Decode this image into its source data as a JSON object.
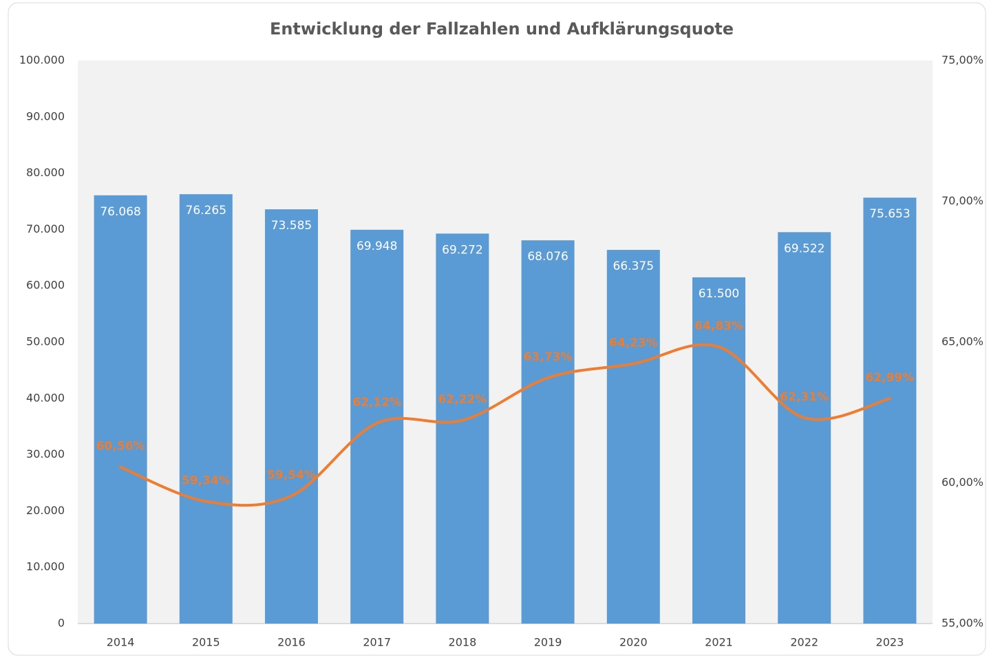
{
  "chart_data": {
    "type": "bar",
    "title": "Entwicklung der Fallzahlen und Aufklärungsquote",
    "categories": [
      "2014",
      "2015",
      "2016",
      "2017",
      "2018",
      "2019",
      "2020",
      "2021",
      "2022",
      "2023"
    ],
    "series": [
      {
        "color": "#5b9bd5",
        "values": [
          76068,
          76265,
          73585,
          69948,
          69272,
          68076,
          66375,
          61500,
          69522,
          75653
        ],
        "value_labels": [
          "76.068",
          "76.265",
          "73.585",
          "69.948",
          "69.272",
          "68.076",
          "66.375",
          "61.500",
          "69.522",
          "75.653"
        ]
      },
      {
        "type": "line",
        "axis": "y2",
        "smooth": true,
        "color": "#ed7d31",
        "values": [
          60.56,
          59.34,
          59.54,
          62.12,
          62.22,
          63.73,
          64.23,
          64.83,
          62.31,
          62.99
        ],
        "value_labels": [
          "60,56%",
          "59,34%",
          "59,54%",
          "62,12%",
          "62,22%",
          "63,73%",
          "64,23%",
          "64,83%",
          "62,31%",
          "62,99%"
        ]
      }
    ],
    "ylim": [
      0,
      100000
    ],
    "yticks": [
      0,
      {
        "value": 10000,
        "label": "10.000"
      },
      {
        "value": 20000,
        "label": "20.000"
      },
      {
        "value": 30000,
        "label": "30.000"
      },
      {
        "value": 40000,
        "label": "40.000"
      },
      {
        "value": 50000,
        "label": "50.000"
      },
      {
        "value": 60000,
        "label": "60.000"
      },
      {
        "value": 70000,
        "label": "70.000"
      },
      {
        "value": 80000,
        "label": "80.000"
      },
      {
        "value": 90000,
        "label": "90.000"
      },
      {
        "value": 100000,
        "label": "100.000"
      }
    ],
    "y2lim": [
      55,
      75
    ],
    "y2ticks": [
      {
        "value": 55,
        "label": "55,00%"
      },
      {
        "value": 60,
        "label": "60,00%"
      },
      {
        "value": 65,
        "label": "65,00%"
      },
      {
        "value": 70,
        "label": "70,00%"
      },
      {
        "value": 75,
        "label": "75,00%"
      }
    ],
    "grid": false
  }
}
